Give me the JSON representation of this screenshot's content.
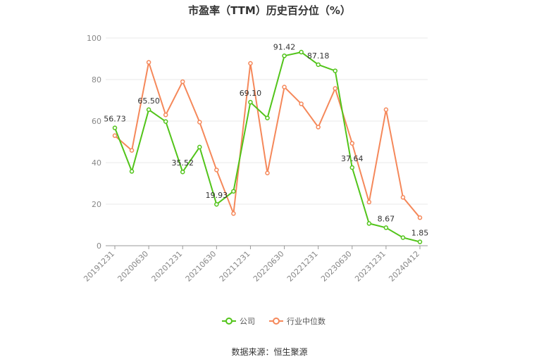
{
  "chart_data": {
    "type": "line",
    "title": "市盈率（TTM）历史百分位（%）",
    "ylim": [
      0,
      100
    ],
    "yticks": [
      0,
      20,
      40,
      60,
      80,
      100
    ],
    "x_tick_labels": [
      "20191231",
      "20200630",
      "20201231",
      "20210630",
      "20211231",
      "20220630",
      "20221231",
      "20230630",
      "20231231",
      "20240412"
    ],
    "x_tick_positions": [
      0,
      2,
      4,
      6,
      8,
      10,
      12,
      14,
      16,
      18
    ],
    "series": [
      {
        "name": "公司",
        "color": "#52c41a",
        "values": [
          56.73,
          35.8,
          65.5,
          59.8,
          35.52,
          47.5,
          19.93,
          26.2,
          69.1,
          61.5,
          91.42,
          93.2,
          87.18,
          84.2,
          37.64,
          10.7,
          8.67,
          3.9,
          1.85
        ],
        "data_labels": [
          {
            "index": 0,
            "text": "56.73"
          },
          {
            "index": 2,
            "text": "65.50"
          },
          {
            "index": 4,
            "text": "35.52"
          },
          {
            "index": 6,
            "text": "19.93"
          },
          {
            "index": 8,
            "text": "69.10"
          },
          {
            "index": 10,
            "text": "91.42"
          },
          {
            "index": 12,
            "text": "87.18"
          },
          {
            "index": 14,
            "text": "37.64"
          },
          {
            "index": 16,
            "text": "8.67"
          },
          {
            "index": 18,
            "text": "1.85"
          }
        ]
      },
      {
        "name": "行业中位数",
        "color": "#f5885a",
        "values": [
          53.0,
          45.9,
          88.3,
          63.0,
          79.0,
          59.5,
          36.5,
          15.5,
          87.8,
          35.0,
          76.4,
          68.3,
          57.1,
          75.7,
          49.3,
          21.0,
          65.5,
          23.3,
          13.5
        ]
      }
    ],
    "legend_position": "bottom-center"
  },
  "source_text": "数据来源：恒生聚源"
}
